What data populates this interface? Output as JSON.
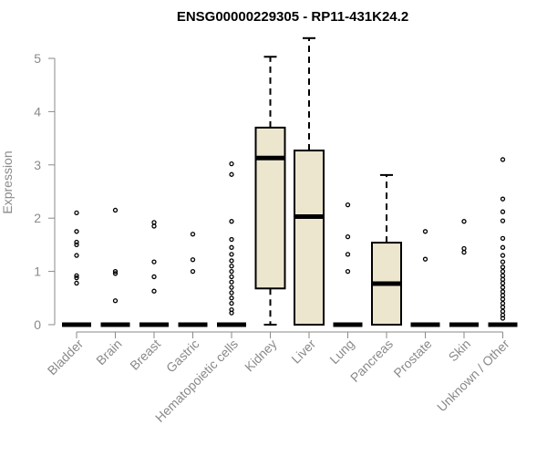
{
  "chart_data": {
    "type": "box",
    "title": "ENSG00000229305 - RP11-431K24.2",
    "xlabel": "",
    "ylabel": "Expression",
    "ylim": [
      0,
      5
    ],
    "yticks": [
      0,
      1,
      2,
      3,
      4,
      5
    ],
    "grid": false,
    "legend": "none",
    "colors": {
      "box_fill": "#ede6cf",
      "box_stroke": "#000000",
      "axis": "#8a8a8a",
      "tick_label": "#8a8a8a"
    },
    "categories": [
      "Bladder",
      "Brain",
      "Breast",
      "Gastric",
      "Hematopoietic cells",
      "Kidney",
      "Liver",
      "Lung",
      "Pancreas",
      "Prostate",
      "Skin",
      "Unknown / Other"
    ],
    "boxes": [
      {
        "q1": 0,
        "median": 0,
        "q3": 0,
        "whisker_low": 0,
        "whisker_high": 0,
        "outliers": [
          2.1,
          1.75,
          1.55,
          1.5,
          1.3,
          0.92,
          0.88,
          0.78
        ]
      },
      {
        "q1": 0,
        "median": 0,
        "q3": 0,
        "whisker_low": 0,
        "whisker_high": 0,
        "outliers": [
          2.15,
          1.0,
          0.96,
          0.45
        ]
      },
      {
        "q1": 0,
        "median": 0,
        "q3": 0,
        "whisker_low": 0,
        "whisker_high": 0,
        "outliers": [
          1.92,
          1.85,
          1.18,
          0.9,
          0.63
        ]
      },
      {
        "q1": 0,
        "median": 0,
        "q3": 0,
        "whisker_low": 0,
        "whisker_high": 0,
        "outliers": [
          1.7,
          1.22,
          1.0
        ]
      },
      {
        "q1": 0,
        "median": 0,
        "q3": 0,
        "whisker_low": 0,
        "whisker_high": 0,
        "outliers": [
          3.02,
          2.82,
          1.94,
          1.6,
          1.45,
          1.32,
          1.2,
          1.1,
          1.0,
          0.9,
          0.8,
          0.7,
          0.6,
          0.5,
          0.4,
          0.28,
          0.22
        ]
      },
      {
        "q1": 0.68,
        "median": 3.13,
        "q3": 3.7,
        "whisker_low": 0,
        "whisker_high": 5.03,
        "outliers": []
      },
      {
        "q1": 0,
        "median": 2.03,
        "q3": 3.27,
        "whisker_low": 0,
        "whisker_high": 5.38,
        "outliers": []
      },
      {
        "q1": 0,
        "median": 0,
        "q3": 0,
        "whisker_low": 0,
        "whisker_high": 0,
        "outliers": [
          2.25,
          1.65,
          1.32,
          1.0
        ]
      },
      {
        "q1": 0,
        "median": 0.77,
        "q3": 1.54,
        "whisker_low": 0,
        "whisker_high": 2.81,
        "outliers": []
      },
      {
        "q1": 0,
        "median": 0,
        "q3": 0,
        "whisker_low": 0,
        "whisker_high": 0,
        "outliers": [
          1.75,
          1.23
        ]
      },
      {
        "q1": 0,
        "median": 0,
        "q3": 0,
        "whisker_low": 0,
        "whisker_high": 0,
        "outliers": [
          1.94,
          1.43,
          1.36
        ]
      },
      {
        "q1": 0,
        "median": 0,
        "q3": 0,
        "whisker_low": 0,
        "whisker_high": 0,
        "outliers": [
          3.1,
          2.36,
          2.12,
          1.95,
          1.62,
          1.45,
          1.3,
          1.18,
          1.08,
          1.0,
          0.92,
          0.85,
          0.78,
          0.7,
          0.62,
          0.55,
          0.48,
          0.4,
          0.33,
          0.25,
          0.18,
          0.12
        ]
      }
    ]
  }
}
